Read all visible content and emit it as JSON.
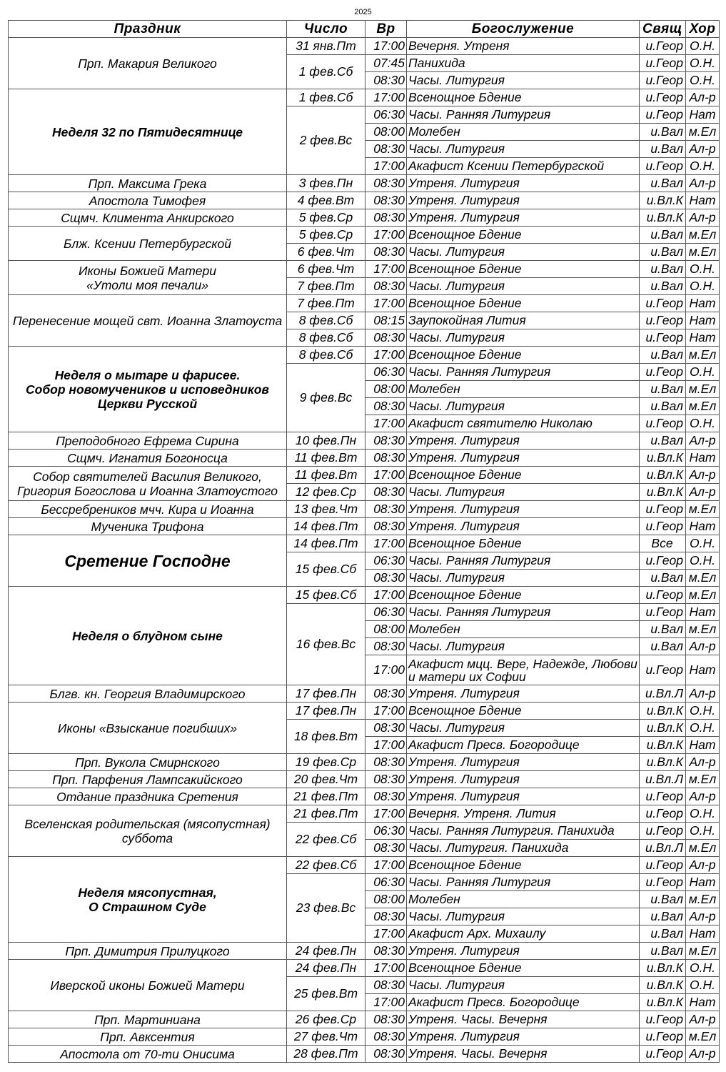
{
  "year": "2025",
  "headers": {
    "feast": "Праздник",
    "date": "Число",
    "time": "Вр",
    "service": "Богослужение",
    "priest": "Свящ",
    "choir": "Хор"
  },
  "groups": [
    {
      "feast": "Прп. Макария Великого",
      "style": "normal",
      "dates": [
        {
          "date": "31 янв.Пт",
          "services": [
            {
              "time": "17:00",
              "service": "Вечерня. Утреня",
              "priest": "и.Геор",
              "choir": "О.Н."
            }
          ]
        },
        {
          "date": "1 фев.Сб",
          "services": [
            {
              "time": "07:45",
              "service": "Панихида",
              "priest": "и.Геор",
              "choir": "О.Н."
            },
            {
              "time": "08:30",
              "service": "Часы. Литургия",
              "priest": "и.Геор",
              "choir": "О.Н."
            }
          ]
        }
      ]
    },
    {
      "feast": "Неделя 32 по Пятидесятнице",
      "style": "bold",
      "dates": [
        {
          "date": "1 фев.Сб",
          "services": [
            {
              "time": "17:00",
              "service": "Всенощное Бдение",
              "priest": "и.Геор",
              "choir": "Ал-р"
            }
          ]
        },
        {
          "date": "2 фев.Вс",
          "services": [
            {
              "time": "06:30",
              "service": "Часы. Ранняя Литургия",
              "priest": "и.Геор",
              "choir": "Нат"
            },
            {
              "time": "08:00",
              "service": "Молебен",
              "priest": "и.Вал",
              "choir": "м.Ел"
            },
            {
              "time": "08:30",
              "service": "Часы. Литургия",
              "priest": "и.Вал",
              "choir": "Ал-р"
            },
            {
              "time": "17:00",
              "service": "Акафист Ксении Петербургской",
              "priest": "и.Геор",
              "choir": "О.Н."
            }
          ]
        }
      ]
    },
    {
      "feast": "Прп. Максима Грека",
      "style": "normal",
      "dates": [
        {
          "date": "3 фев.Пн",
          "services": [
            {
              "time": "08:30",
              "service": "Утреня. Литургия",
              "priest": "и.Вал",
              "choir": "Ал-р"
            }
          ]
        }
      ]
    },
    {
      "feast": "Апостола Тимофея",
      "style": "normal",
      "dates": [
        {
          "date": "4 фев.Вт",
          "services": [
            {
              "time": "08:30",
              "service": "Утреня. Литургия",
              "priest": "и.Вл.К",
              "choir": "Нат"
            }
          ]
        }
      ]
    },
    {
      "feast": "Сщмч. Климента Анкирского",
      "style": "normal",
      "dates": [
        {
          "date": "5 фев.Ср",
          "services": [
            {
              "time": "08:30",
              "service": "Утреня. Литургия",
              "priest": "и.Вл.К",
              "choir": "Ал-р"
            }
          ]
        }
      ]
    },
    {
      "feast": "Блж. Ксении Петербургской",
      "style": "normal",
      "dates": [
        {
          "date": "5 фев.Ср",
          "services": [
            {
              "time": "17:00",
              "service": "Всенощное Бдение",
              "priest": "и.Вал",
              "choir": "м.Ел"
            }
          ]
        },
        {
          "date": "6 фев.Чт",
          "services": [
            {
              "time": "08:30",
              "service": "Часы. Литургия",
              "priest": "и.Вал",
              "choir": "м.Ел"
            }
          ]
        }
      ]
    },
    {
      "feast": "Иконы Божией Матери\n«Утоли моя печали»",
      "style": "normal",
      "dates": [
        {
          "date": "6 фев.Чт",
          "services": [
            {
              "time": "17:00",
              "service": "Всенощное Бдение",
              "priest": "и.Вал",
              "choir": "О.Н."
            }
          ]
        },
        {
          "date": "7 фев.Пт",
          "services": [
            {
              "time": "08:30",
              "service": "Часы. Литургия",
              "priest": "и.Вал",
              "choir": "О.Н."
            }
          ]
        }
      ]
    },
    {
      "feast": "Перенесение мощей свт. Иоанна Златоуста",
      "style": "normal",
      "dates": [
        {
          "date": "7 фев.Пт",
          "services": [
            {
              "time": "17:00",
              "service": "Всенощное Бдение",
              "priest": "и.Геор",
              "choir": "Нат"
            }
          ]
        },
        {
          "date": "8 фев.Сб",
          "services": [
            {
              "time": "08:15",
              "service": "Заупокойная Лития",
              "priest": "и.Геор",
              "choir": "Нат"
            }
          ]
        },
        {
          "date": "8 фев.Сб",
          "services": [
            {
              "time": "08:30",
              "service": "Часы. Литургия",
              "priest": "и.Геор",
              "choir": "Нат"
            }
          ]
        }
      ]
    },
    {
      "feast": "Неделя о мытаре и фарисее.\nСобор новомучеников и исповедников\nЦеркви Русской",
      "style": "bold",
      "dates": [
        {
          "date": "8 фев.Сб",
          "services": [
            {
              "time": "17:00",
              "service": "Всенощное Бдение",
              "priest": "и.Вал",
              "choir": "м.Ел"
            }
          ]
        },
        {
          "date": "9 фев.Вс",
          "services": [
            {
              "time": "06:30",
              "service": "Часы. Ранняя Литургия",
              "priest": "и.Геор",
              "choir": "О.Н."
            },
            {
              "time": "08:00",
              "service": "Молебен",
              "priest": "и.Вал",
              "choir": "м.Ел"
            },
            {
              "time": "08:30",
              "service": "Часы. Литургия",
              "priest": "и.Вал",
              "choir": "м.Ел"
            },
            {
              "time": "17:00",
              "service": "Акафист святителю Николаю",
              "priest": "и.Геор",
              "choir": "О.Н."
            }
          ]
        }
      ]
    },
    {
      "feast": "Преподобного Ефрема Сирина",
      "style": "normal",
      "dates": [
        {
          "date": "10 фев.Пн",
          "services": [
            {
              "time": "08:30",
              "service": "Утреня. Литургия",
              "priest": "и.Вал",
              "choir": "Ал-р"
            }
          ]
        }
      ]
    },
    {
      "feast": "Сщмч. Игнатия Богоносца",
      "style": "normal",
      "dates": [
        {
          "date": "11 фев.Вт",
          "services": [
            {
              "time": "08:30",
              "service": "Утреня. Литургия",
              "priest": "и.Вл.К",
              "choir": "Нат"
            }
          ]
        }
      ]
    },
    {
      "feast": "Собор святителей Василия Великого,\nГригория Богослова и Иоанна Златоустого",
      "style": "normal",
      "dates": [
        {
          "date": "11 фев.Вт",
          "services": [
            {
              "time": "17:00",
              "service": "Всенощное Бдение",
              "priest": "и.Вл.К",
              "choir": "Ал-р"
            }
          ]
        },
        {
          "date": "12 фев.Ср",
          "services": [
            {
              "time": "08:30",
              "service": "Часы. Литургия",
              "priest": "и.Вл.К",
              "choir": "Ал-р"
            }
          ]
        }
      ]
    },
    {
      "feast": "Бессребреников мчч. Кира и Иоанна",
      "style": "normal",
      "dates": [
        {
          "date": "13 фев.Чт",
          "services": [
            {
              "time": "08:30",
              "service": "Утреня. Литургия",
              "priest": "и.Геор",
              "choir": "м.Ел"
            }
          ]
        }
      ]
    },
    {
      "feast": "Мученика Трифона",
      "style": "normal",
      "dates": [
        {
          "date": "14 фев.Пт",
          "services": [
            {
              "time": "08:30",
              "service": "Утреня. Литургия",
              "priest": "и.Геор",
              "choir": "Нат"
            }
          ]
        }
      ]
    },
    {
      "feast": "Сретение Господне",
      "style": "big",
      "dates": [
        {
          "date": "14 фев.Пт",
          "services": [
            {
              "time": "17:00",
              "service": "Всенощное Бдение",
              "priest": "Все",
              "choir": "О.Н."
            }
          ]
        },
        {
          "date": "15 фев.Сб",
          "services": [
            {
              "time": "06:30",
              "service": "Часы. Ранняя Литургия",
              "priest": "и.Геор",
              "choir": "О.Н."
            },
            {
              "time": "08:30",
              "service": "Часы. Литургия",
              "priest": "и.Вал",
              "choir": "м.Ел"
            }
          ]
        }
      ]
    },
    {
      "feast": "Неделя о блудном сыне",
      "style": "bold",
      "dates": [
        {
          "date": "15 фев.Сб",
          "services": [
            {
              "time": "17:00",
              "service": "Всенощное Бдение",
              "priest": "и.Геор",
              "choir": "м.Ел"
            }
          ]
        },
        {
          "date": "16 фев.Вс",
          "services": [
            {
              "time": "06:30",
              "service": "Часы. Ранняя Литургия",
              "priest": "и.Геор",
              "choir": "Нат"
            },
            {
              "time": "08:00",
              "service": "Молебен",
              "priest": "и.Вал",
              "choir": "м.Ел"
            },
            {
              "time": "08:30",
              "service": "Часы. Литургия",
              "priest": "и.Вал",
              "choir": "Ал-р"
            },
            {
              "time": "17:00",
              "service": "Акафист мцц. Вере, Надежде, Любови и матери их Софии",
              "priest": "и.Геор",
              "choir": "Нат"
            }
          ]
        }
      ]
    },
    {
      "feast": "Блгв. кн. Георгия Владимирского",
      "style": "normal",
      "dates": [
        {
          "date": "17 фев.Пн",
          "services": [
            {
              "time": "08:30",
              "service": "Утреня. Литургия",
              "priest": "и.Вл.Л",
              "choir": "Ал-р"
            }
          ]
        }
      ]
    },
    {
      "feast": "Иконы «Взыскание погибших»",
      "style": "normal",
      "dates": [
        {
          "date": "17 фев.Пн",
          "services": [
            {
              "time": "17:00",
              "service": "Всенощное Бдение",
              "priest": "и.Вл.К",
              "choir": "О.Н."
            }
          ]
        },
        {
          "date": "18 фев.Вт",
          "services": [
            {
              "time": "08:30",
              "service": "Часы. Литургия",
              "priest": "и.Вл.К",
              "choir": "О.Н."
            },
            {
              "time": "17:00",
              "service": "Акафист Пресв. Богородице",
              "priest": "и.Вл.К",
              "choir": "Нат"
            }
          ]
        }
      ]
    },
    {
      "feast": "Прп. Вукола Смирнского",
      "style": "normal",
      "dates": [
        {
          "date": "19 фев.Ср",
          "services": [
            {
              "time": "08:30",
              "service": "Утреня. Литургия",
              "priest": "и.Вл.К",
              "choir": "Ал-р"
            }
          ]
        }
      ]
    },
    {
      "feast": "Прп. Парфения Лампсакийского",
      "style": "normal",
      "dates": [
        {
          "date": "20 фев.Чт",
          "services": [
            {
              "time": "08:30",
              "service": "Утреня. Литургия",
              "priest": "и.Вл.Л",
              "choir": "м.Ел"
            }
          ]
        }
      ]
    },
    {
      "feast": "Отдание праздника Сретения",
      "style": "normal",
      "dates": [
        {
          "date": "21 фев.Пт",
          "services": [
            {
              "time": "08:30",
              "service": "Утреня. Литургия",
              "priest": "и.Геор",
              "choir": "Ал-р"
            }
          ]
        }
      ]
    },
    {
      "feast": "Вселенская родительская (мясопустная)\nсуббота",
      "style": "normal",
      "dates": [
        {
          "date": "21 фев.Пт",
          "services": [
            {
              "time": "17:00",
              "service": "Вечерня. Утреня. Лития",
              "priest": "и.Геор",
              "choir": "О.Н."
            }
          ]
        },
        {
          "date": "22 фев.Сб",
          "services": [
            {
              "time": "06:30",
              "service": "Часы. Ранняя Литургия. Панихида",
              "priest": "и.Геор",
              "choir": "О.Н."
            },
            {
              "time": "08:30",
              "service": "Часы. Литургия. Панихида",
              "priest": "и.Вл.Л",
              "choir": "м.Ел"
            }
          ]
        }
      ]
    },
    {
      "feast": "Неделя мясопустная,\nО Страшном Суде",
      "style": "bold",
      "dates": [
        {
          "date": "22 фев.Сб",
          "services": [
            {
              "time": "17:00",
              "service": "Всенощное Бдение",
              "priest": "и.Геор",
              "choir": "Ал-р"
            }
          ]
        },
        {
          "date": "23 фев.Вс",
          "services": [
            {
              "time": "06:30",
              "service": "Часы. Ранняя Литургия",
              "priest": "и.Геор",
              "choir": "Нат"
            },
            {
              "time": "08:00",
              "service": "Молебен",
              "priest": "и.Вал",
              "choir": "м.Ел"
            },
            {
              "time": "08:30",
              "service": "Часы. Литургия",
              "priest": "и.Вал",
              "choir": "Ал-р"
            },
            {
              "time": "17:00",
              "service": "Акафист Арх. Михаилу",
              "priest": "и.Вал",
              "choir": "Нат"
            }
          ]
        }
      ]
    },
    {
      "feast": "Прп. Димитрия Прилуцкого",
      "style": "normal",
      "dates": [
        {
          "date": "24 фев.Пн",
          "services": [
            {
              "time": "08:30",
              "service": "Утреня. Литургия",
              "priest": "и.Вал",
              "choir": "м.Ел"
            }
          ]
        }
      ]
    },
    {
      "feast": "Иверской иконы Божией Матери",
      "style": "normal",
      "dates": [
        {
          "date": "24 фев.Пн",
          "services": [
            {
              "time": "17:00",
              "service": "Всенощное Бдение",
              "priest": "и.Вл.К",
              "choir": "О.Н."
            }
          ]
        },
        {
          "date": "25 фев.Вт",
          "services": [
            {
              "time": "08:30",
              "service": "Часы. Литургия",
              "priest": "и.Вл.К",
              "choir": "О.Н."
            },
            {
              "time": "17:00",
              "service": "Акафист Пресв. Богородице",
              "priest": "и.Вл.К",
              "choir": "Нат"
            }
          ]
        }
      ]
    },
    {
      "feast": "Прп. Мартиниана",
      "style": "normal",
      "dates": [
        {
          "date": "26 фев.Ср",
          "services": [
            {
              "time": "08:30",
              "service": "Утреня. Часы. Вечерня",
              "priest": "и.Геор",
              "choir": "Ал-р"
            }
          ]
        }
      ]
    },
    {
      "feast": "Прп. Авксентия",
      "style": "normal",
      "dates": [
        {
          "date": "27 фев.Чт",
          "services": [
            {
              "time": "08:30",
              "service": "Утреня. Литургия",
              "priest": "и.Геор",
              "choir": "м.Ел"
            }
          ]
        }
      ]
    },
    {
      "feast": "Апостола от 70-ти Онисима",
      "style": "normal",
      "dates": [
        {
          "date": "28 фев.Пт",
          "services": [
            {
              "time": "08:30",
              "service": "Утреня. Часы. Вечерня",
              "priest": "и.Геор",
              "choir": "Ал-р"
            }
          ]
        }
      ]
    }
  ]
}
